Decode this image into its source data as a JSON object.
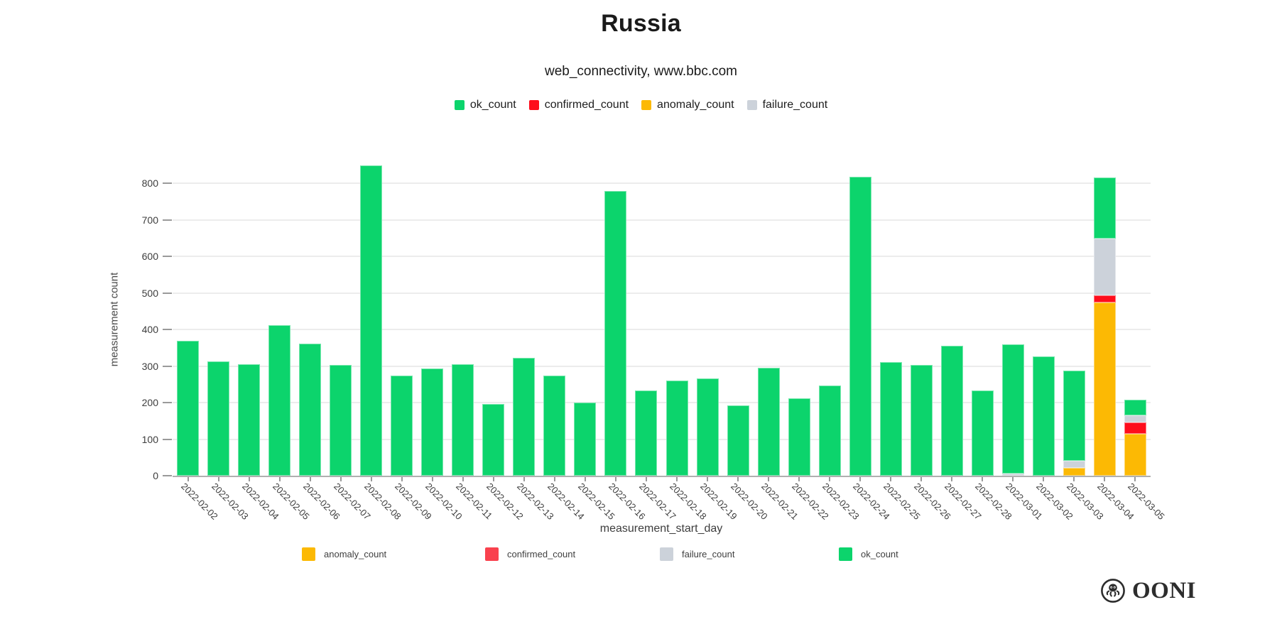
{
  "header": {
    "title": "Russia",
    "subtitle": "web_connectivity, www.bbc.com"
  },
  "top_legend": [
    {
      "label": "ok_count",
      "color": "#0cd46c"
    },
    {
      "label": "confirmed_count",
      "color": "#fe0d1c"
    },
    {
      "label": "anomaly_count",
      "color": "#fcb904"
    },
    {
      "label": "failure_count",
      "color": "#ccd2da"
    }
  ],
  "bottom_legend": [
    {
      "label": "anomaly_count",
      "color": "#fcb904"
    },
    {
      "label": "confirmed_count",
      "color": "#f9414e"
    },
    {
      "label": "failure_count",
      "color": "#ccd2da"
    },
    {
      "label": "ok_count",
      "color": "#0cd46c"
    }
  ],
  "chart_data": {
    "type": "bar",
    "stacked": true,
    "title": "Russia",
    "subtitle": "web_connectivity, www.bbc.com",
    "xlabel": "measurement_start_day",
    "ylabel": "measurement count",
    "ylim": [
      0,
      900
    ],
    "yticks": [
      0,
      100,
      200,
      300,
      400,
      500,
      600,
      700,
      800
    ],
    "grid": true,
    "legend_position": "top",
    "stack_order_bottom_to_top": [
      "anomaly_count",
      "confirmed_count",
      "failure_count",
      "ok_count"
    ],
    "categories": [
      "2022-02-02",
      "2022-02-03",
      "2022-02-04",
      "2022-02-05",
      "2022-02-06",
      "2022-02-07",
      "2022-02-08",
      "2022-02-09",
      "2022-02-10",
      "2022-02-11",
      "2022-02-12",
      "2022-02-13",
      "2022-02-14",
      "2022-02-15",
      "2022-02-16",
      "2022-02-17",
      "2022-02-18",
      "2022-02-19",
      "2022-02-20",
      "2022-02-21",
      "2022-02-22",
      "2022-02-23",
      "2022-02-24",
      "2022-02-25",
      "2022-02-26",
      "2022-02-27",
      "2022-02-28",
      "2022-03-01",
      "2022-03-02",
      "2022-03-03",
      "2022-03-04",
      "2022-03-05"
    ],
    "series": [
      {
        "name": "anomaly_count",
        "color": "#fcb904",
        "values": [
          0,
          0,
          0,
          0,
          0,
          0,
          0,
          0,
          0,
          0,
          0,
          0,
          0,
          0,
          0,
          0,
          0,
          0,
          0,
          0,
          0,
          0,
          0,
          0,
          0,
          0,
          0,
          0,
          0,
          21,
          473,
          114
        ]
      },
      {
        "name": "confirmed_count",
        "color": "#fe0d1c",
        "values": [
          0,
          0,
          0,
          0,
          0,
          0,
          0,
          0,
          0,
          0,
          0,
          0,
          0,
          0,
          0,
          0,
          0,
          0,
          0,
          0,
          0,
          0,
          0,
          0,
          0,
          0,
          0,
          0,
          0,
          0,
          21,
          31
        ]
      },
      {
        "name": "failure_count",
        "color": "#ccd2da",
        "values": [
          0,
          0,
          0,
          0,
          0,
          0,
          0,
          0,
          0,
          0,
          0,
          0,
          0,
          0,
          0,
          0,
          0,
          0,
          0,
          0,
          0,
          0,
          0,
          0,
          0,
          0,
          0,
          6,
          0,
          19,
          155,
          21
        ]
      },
      {
        "name": "ok_count",
        "color": "#0cd46c",
        "values": [
          368,
          313,
          305,
          412,
          361,
          302,
          848,
          274,
          294,
          305,
          197,
          322,
          274,
          201,
          779,
          234,
          261,
          267,
          193,
          296,
          211,
          247,
          817,
          311,
          303,
          355,
          233,
          353,
          326,
          248,
          167,
          41
        ]
      }
    ]
  },
  "footer": {
    "brand": "OONI"
  }
}
